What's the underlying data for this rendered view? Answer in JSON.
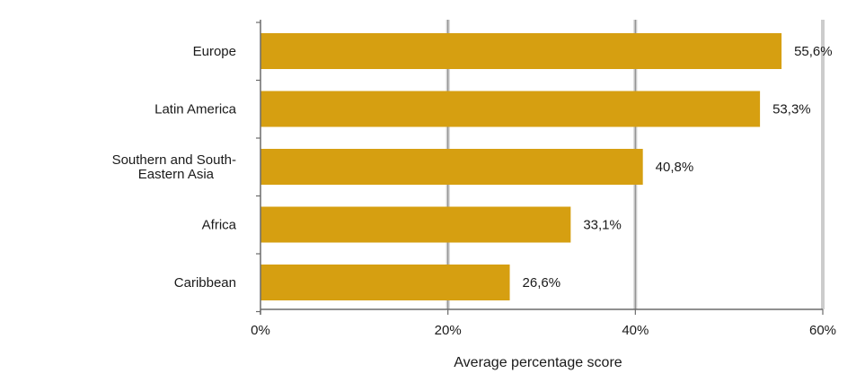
{
  "chart_data": {
    "type": "bar",
    "orientation": "horizontal",
    "categories": [
      [
        "Europe"
      ],
      [
        "Latin America"
      ],
      [
        "Southern and South-",
        "Eastern Asia"
      ],
      [
        "Africa"
      ],
      [
        "Caribbean"
      ]
    ],
    "values": [
      55.6,
      53.3,
      40.8,
      33.1,
      26.6
    ],
    "value_labels": [
      "55,6%",
      "53,3%",
      "40,8%",
      "33,1%",
      "26,6%"
    ],
    "xlabel": "Average percentage score",
    "ylabel": "",
    "xlim": [
      0,
      60
    ],
    "x_ticks": [
      0,
      20,
      40,
      60
    ],
    "x_tick_labels": [
      "0%",
      "20%",
      "40%",
      "60%"
    ],
    "grid": "vertical",
    "legend": "none",
    "colors": {
      "bar": "#D69F11",
      "grid": "#cccccc",
      "axis": "#6b6b6b"
    }
  }
}
